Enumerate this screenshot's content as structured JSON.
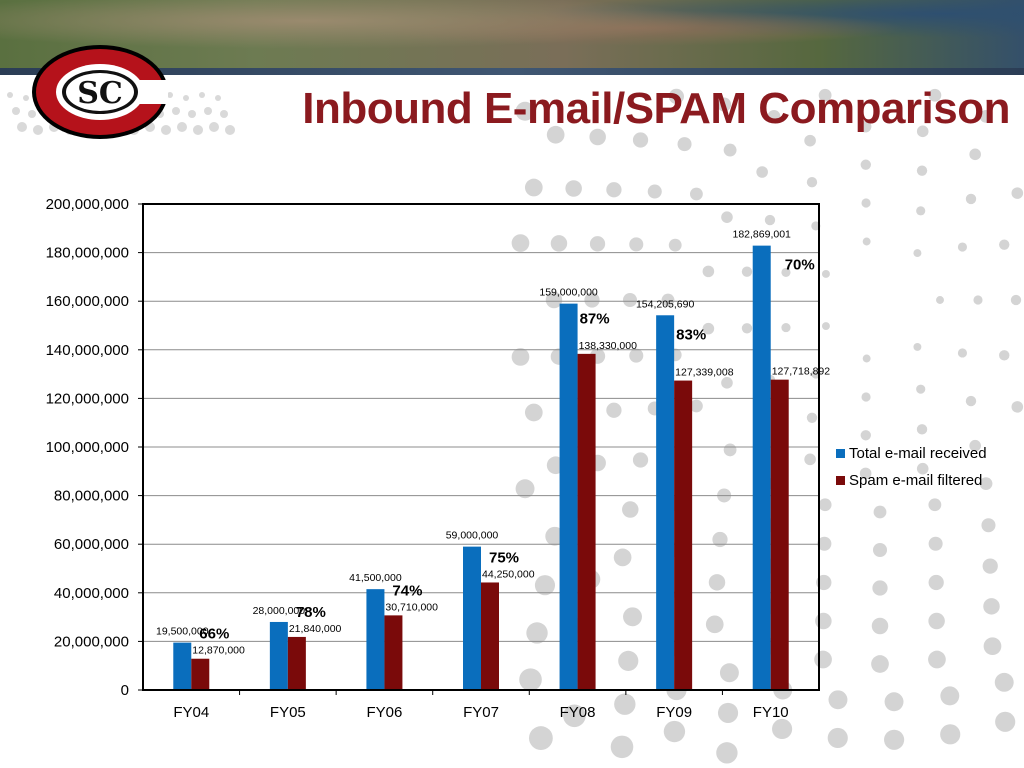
{
  "slide": {
    "title": "Inbound E-mail/SPAM Comparison",
    "logo_text": "SC",
    "colors": {
      "title": "#8b1a1f",
      "total": "#0a6ebd",
      "spam": "#7a0a0a"
    }
  },
  "chart_data": {
    "type": "bar",
    "title": "",
    "xlabel": "",
    "ylabel": "",
    "categories": [
      "FY04",
      "FY05",
      "FY06",
      "FY07",
      "FY08",
      "FY09",
      "FY10"
    ],
    "series": [
      {
        "name": "Total e-mail received",
        "color": "#0a6ebd",
        "values": [
          19500000,
          28000000,
          41500000,
          59000000,
          159000000,
          154205690,
          182869001
        ],
        "labels": [
          "19,500,000",
          "28,000,000",
          "41,500,000",
          "59,000,000",
          "159,000,000",
          "154,205,690",
          "182,869,001"
        ]
      },
      {
        "name": "Spam e-mail filtered",
        "color": "#7a0a0a",
        "values": [
          12870000,
          21840000,
          30710000,
          44250000,
          138330000,
          127339008,
          127718892
        ],
        "labels": [
          "12,870,000",
          "21,840,000",
          "30,710,000",
          "44,250,000",
          "138,330,000",
          "127,339,008",
          "127,718,892"
        ]
      }
    ],
    "percentages": [
      "66%",
      "78%",
      "74%",
      "75%",
      "87%",
      "83%",
      "70%"
    ],
    "ylim": [
      0,
      200000000
    ],
    "yticks": [
      0,
      20000000,
      40000000,
      60000000,
      80000000,
      100000000,
      120000000,
      140000000,
      160000000,
      180000000,
      200000000
    ],
    "ytick_labels": [
      "0",
      "20,000,000",
      "40,000,000",
      "60,000,000",
      "80,000,000",
      "100,000,000",
      "120,000,000",
      "140,000,000",
      "160,000,000",
      "180,000,000",
      "200,000,000"
    ],
    "grid": true,
    "legend_position": "right"
  }
}
